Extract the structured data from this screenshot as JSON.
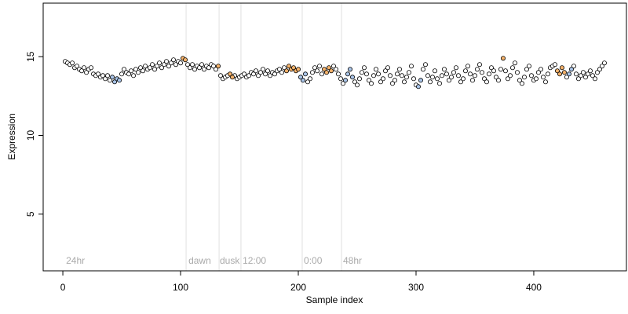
{
  "chart_data": {
    "type": "scatter",
    "x_label": "Sample index",
    "y_label": "Expression",
    "xlim": [
      -16.7,
      478.7
    ],
    "ylim": [
      1.4,
      18.4
    ],
    "xticks": [
      0,
      100,
      200,
      300,
      400
    ],
    "yticks": [
      5,
      10,
      15
    ],
    "vlines": [
      104.7,
      132.7,
      151.3,
      203.3,
      236.7
    ],
    "annotations": [
      {
        "x": 2.7,
        "y": 2.0,
        "label": "24hr"
      },
      {
        "x": 106.7,
        "y": 2.0,
        "label": "dawn"
      },
      {
        "x": 133.3,
        "y": 2.0,
        "label": "dusk"
      },
      {
        "x": 152.7,
        "y": 2.0,
        "label": "12:00"
      },
      {
        "x": 204.7,
        "y": 2.0,
        "label": "0:00"
      },
      {
        "x": 238,
        "y": 2.0,
        "label": "48hr"
      }
    ],
    "series": [
      {
        "color": "#ffffff",
        "x": [
          2,
          4,
          6,
          8,
          10,
          12,
          14,
          16,
          18,
          20,
          22,
          24,
          26,
          28,
          30,
          32,
          34,
          36,
          38,
          40,
          50,
          52,
          54,
          56,
          58,
          60,
          62,
          64,
          66,
          68,
          70,
          72,
          74,
          76,
          78,
          80,
          82,
          84,
          86,
          88,
          90,
          92,
          94,
          96,
          98,
          100,
          106,
          108,
          110,
          112,
          114,
          116,
          118,
          120,
          122,
          124,
          126,
          128,
          130,
          134,
          136,
          138,
          140,
          146,
          148,
          150,
          152,
          154,
          156,
          158,
          160,
          162,
          164,
          166,
          168,
          170,
          172,
          174,
          176,
          178,
          180,
          182,
          184,
          186,
          188,
          208,
          210,
          212,
          214,
          216,
          218,
          220,
          230,
          232,
          234,
          236,
          238,
          248,
          250,
          252,
          254,
          256,
          258,
          260,
          262,
          264,
          266,
          268,
          270,
          272,
          274,
          276,
          278,
          280,
          282,
          284,
          286,
          288,
          290,
          292,
          294,
          296,
          298,
          300,
          306,
          308,
          310,
          312,
          314,
          316,
          318,
          320,
          322,
          324,
          326,
          328,
          330,
          332,
          334,
          336,
          338,
          340,
          342,
          344,
          346,
          348,
          350,
          352,
          354,
          356,
          358,
          360,
          362,
          364,
          366,
          368,
          370,
          372,
          376,
          378,
          380,
          382,
          384,
          386,
          388,
          390,
          392,
          394,
          396,
          398,
          400,
          402,
          404,
          406,
          408,
          410,
          412,
          414,
          416,
          418,
          428,
          434,
          436,
          438,
          440,
          442,
          444,
          446,
          448,
          450,
          452,
          454,
          456,
          458,
          460
        ],
        "values": [
          14.7,
          14.6,
          14.5,
          14.6,
          14.3,
          14.4,
          14.2,
          14.1,
          14.3,
          14.0,
          14.2,
          14.3,
          13.9,
          13.8,
          13.9,
          13.7,
          13.8,
          13.6,
          13.8,
          13.5,
          13.9,
          14.2,
          14.0,
          13.9,
          14.1,
          13.8,
          14.2,
          14.0,
          14.3,
          14.1,
          14.4,
          14.2,
          14.3,
          14.5,
          14.2,
          14.4,
          14.6,
          14.3,
          14.5,
          14.7,
          14.4,
          14.6,
          14.8,
          14.5,
          14.7,
          14.6,
          14.5,
          14.3,
          14.5,
          14.2,
          14.4,
          14.3,
          14.5,
          14.2,
          14.4,
          14.3,
          14.5,
          14.4,
          14.2,
          13.8,
          13.6,
          13.7,
          13.8,
          13.8,
          13.6,
          13.7,
          13.8,
          13.9,
          13.7,
          13.8,
          14.0,
          13.9,
          14.1,
          13.8,
          14.0,
          14.2,
          13.9,
          14.1,
          13.8,
          14.0,
          13.9,
          14.1,
          14.2,
          14.0,
          14.3,
          13.4,
          13.6,
          14.0,
          14.3,
          14.1,
          14.4,
          13.9,
          14.4,
          14.2,
          13.9,
          13.6,
          13.3,
          13.4,
          13.2,
          13.6,
          14.0,
          14.3,
          13.9,
          13.5,
          13.3,
          13.8,
          14.2,
          13.9,
          13.4,
          13.6,
          14.1,
          14.3,
          13.8,
          13.3,
          13.5,
          13.9,
          14.2,
          13.8,
          13.4,
          13.7,
          14.0,
          14.4,
          13.6,
          13.2,
          14.2,
          14.5,
          13.8,
          13.4,
          13.7,
          14.1,
          13.6,
          13.3,
          13.8,
          14.2,
          13.9,
          13.5,
          13.7,
          14.0,
          14.3,
          13.8,
          13.4,
          13.6,
          14.1,
          14.4,
          13.9,
          13.5,
          13.8,
          14.2,
          14.5,
          14.0,
          13.6,
          13.4,
          13.9,
          14.3,
          14.1,
          13.7,
          13.5,
          14.2,
          14.1,
          13.6,
          13.8,
          14.3,
          14.6,
          14.0,
          13.5,
          13.3,
          13.7,
          14.2,
          14.4,
          13.8,
          13.5,
          13.6,
          14.0,
          14.2,
          13.7,
          13.4,
          13.9,
          14.3,
          14.4,
          14.5,
          13.7,
          14.4,
          13.9,
          13.6,
          13.8,
          14.0,
          13.7,
          13.9,
          14.1,
          13.8,
          13.6,
          14.0,
          14.2,
          14.4,
          14.6
        ]
      },
      {
        "color": "#f4b26b",
        "x": [
          102,
          104,
          132,
          142,
          144,
          190,
          192,
          194,
          196,
          198,
          200,
          222,
          224,
          226,
          228,
          374,
          420,
          422,
          424,
          426
        ],
        "values": [
          14.9,
          14.8,
          14.4,
          13.9,
          13.7,
          14.1,
          14.4,
          14.2,
          14.3,
          14.1,
          14.2,
          14.2,
          14.0,
          14.3,
          14.1,
          14.9,
          14.1,
          13.9,
          14.3,
          14.0
        ]
      },
      {
        "color": "#a9c4e8",
        "x": [
          42,
          44,
          46,
          48,
          202,
          204,
          206,
          240,
          242,
          244,
          246,
          302,
          304,
          430,
          432
        ],
        "values": [
          13.7,
          13.4,
          13.6,
          13.5,
          13.7,
          13.5,
          13.9,
          13.5,
          13.9,
          14.2,
          13.7,
          13.1,
          13.5,
          13.9,
          14.2
        ]
      }
    ]
  }
}
